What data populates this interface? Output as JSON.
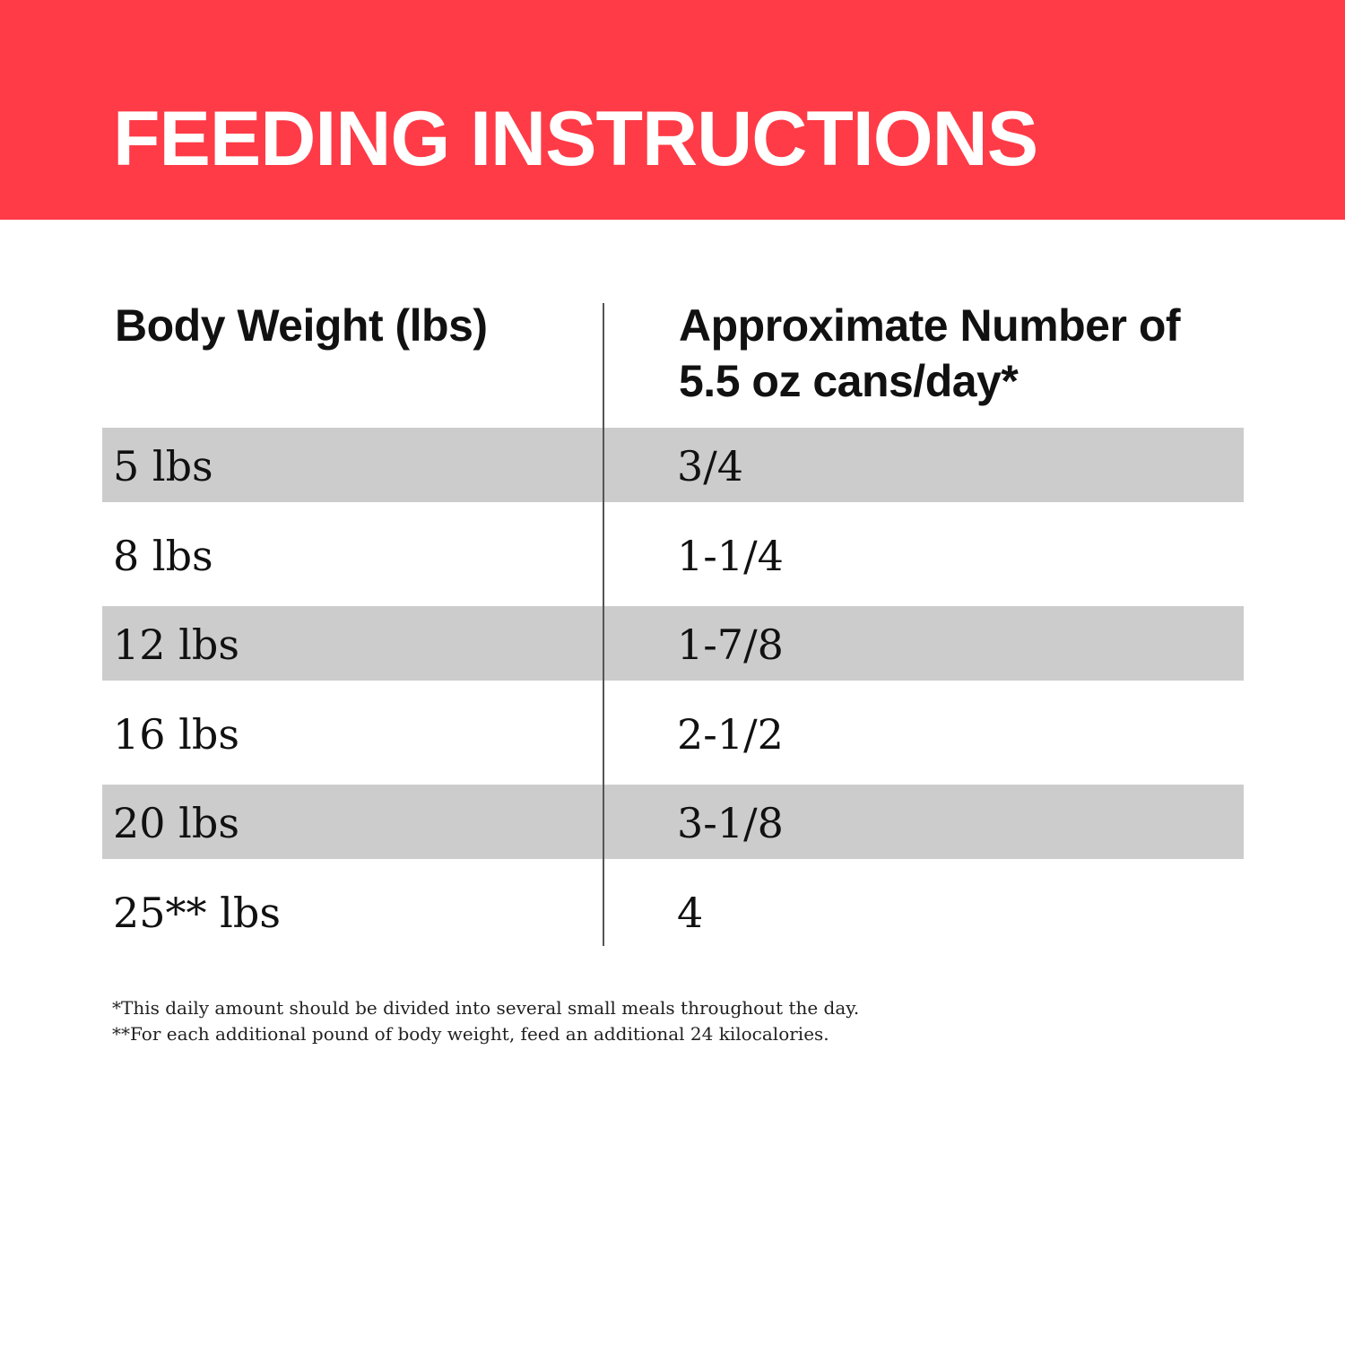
{
  "header": {
    "title": "FEEDING INSTRUCTIONS"
  },
  "table": {
    "columns": [
      "Body Weight (lbs)",
      "Approximate Number of 5.5 oz cans/day*"
    ],
    "rows": [
      [
        "5 lbs",
        "3/4"
      ],
      [
        "8 lbs",
        "1-1/4"
      ],
      [
        "12 lbs",
        "1-7/8"
      ],
      [
        "16 lbs",
        "2-1/2"
      ],
      [
        "20 lbs",
        "3-1/8"
      ],
      [
        "25** lbs",
        "4"
      ]
    ]
  },
  "footnotes": [
    "*This daily amount should be divided into several small meals throughout the day.",
    "**For each additional pound of body weight, feed an additional 24 kilocalories."
  ]
}
